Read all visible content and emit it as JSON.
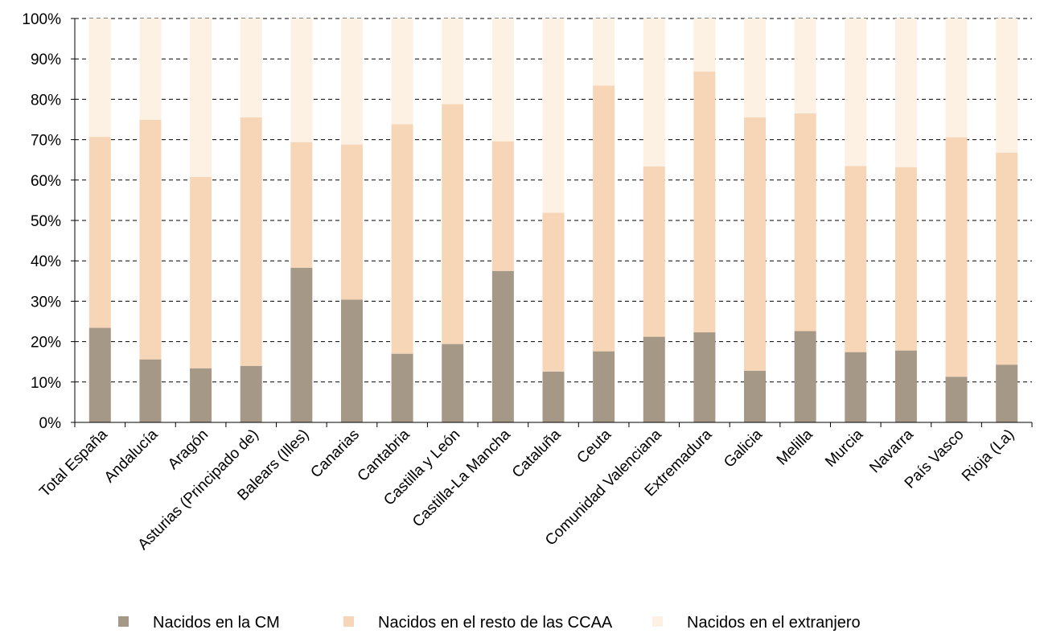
{
  "chart_data": {
    "type": "bar",
    "stacked": true,
    "normalized": true,
    "categories": [
      "Total España",
      "Andalucía",
      "Aragón",
      "Asturias (Principado de)",
      "Balears (Illes)",
      "Canarias",
      "Cantabria",
      "Castilla y León",
      "Castilla-La Mancha",
      "Cataluña",
      "Ceuta",
      "Comunidad Valenciana",
      "Extremadura",
      "Galicia",
      "Melilla",
      "Murcia",
      "Navarra",
      "País Vasco",
      "Rioja (La)"
    ],
    "series": [
      {
        "name": "Nacidos en la CM",
        "color": "#a69886",
        "values": [
          23.4,
          15.6,
          13.4,
          14.0,
          38.3,
          30.4,
          17.0,
          19.4,
          37.5,
          12.6,
          17.6,
          21.2,
          22.3,
          12.8,
          22.6,
          17.4,
          17.8,
          11.3,
          14.3
        ]
      },
      {
        "name": "Nacidos en el resto de las CCAA",
        "color": "#f7d6b8",
        "values": [
          47.3,
          59.3,
          47.4,
          61.5,
          31.1,
          38.4,
          56.8,
          59.4,
          32.1,
          39.3,
          65.8,
          42.2,
          64.6,
          62.7,
          53.9,
          46.1,
          45.4,
          59.3,
          52.5
        ]
      },
      {
        "name": "Nacidos en el extranjero",
        "color": "#fcf1e3",
        "values": [
          29.3,
          25.1,
          39.2,
          24.5,
          30.6,
          31.2,
          26.2,
          21.2,
          30.4,
          48.1,
          16.6,
          36.6,
          13.1,
          24.5,
          23.5,
          36.5,
          36.8,
          29.4,
          33.2
        ]
      }
    ],
    "y_ticks": [
      "0%",
      "10%",
      "20%",
      "30%",
      "40%",
      "50%",
      "60%",
      "70%",
      "80%",
      "90%",
      "100%"
    ],
    "ylim": [
      0,
      100
    ],
    "grid": true,
    "legend_position": "bottom"
  }
}
